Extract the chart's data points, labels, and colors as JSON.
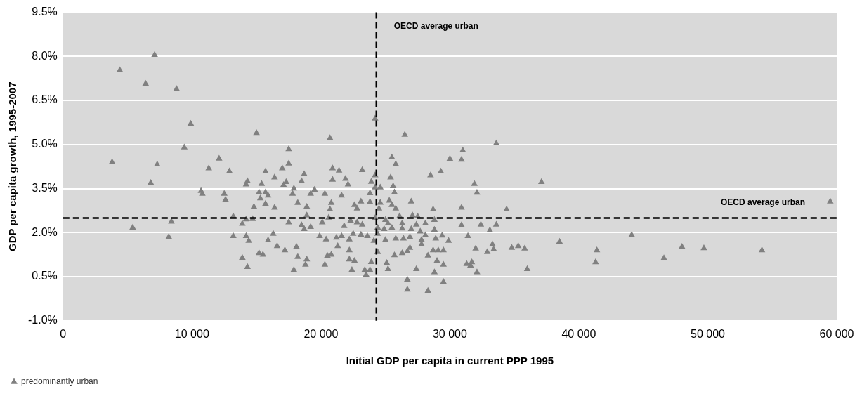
{
  "chart_data": {
    "type": "scatter",
    "xlabel": "Initial GDP per capita in current PPP 1995",
    "ylabel": "GDP per capita growth, 1995-2007",
    "xlim": [
      0,
      60000
    ],
    "xticks": [
      {
        "value": 0,
        "label": "0"
      },
      {
        "value": 10000,
        "label": "10 000"
      },
      {
        "value": 20000,
        "label": "20 000"
      },
      {
        "value": 30000,
        "label": "30 000"
      },
      {
        "value": 40000,
        "label": "40 000"
      },
      {
        "value": 50000,
        "label": "50 000"
      },
      {
        "value": 60000,
        "label": "60 000"
      }
    ],
    "ylim": [
      -1.0,
      9.5
    ],
    "yticks": [
      {
        "value": -1.0,
        "label": "-1.0%"
      },
      {
        "value": 0.5,
        "label": "0.5%"
      },
      {
        "value": 2.0,
        "label": "2.0%"
      },
      {
        "value": 3.5,
        "label": "3.5%"
      },
      {
        "value": 5.0,
        "label": "5.0%"
      },
      {
        "value": 6.5,
        "label": "6.5%"
      },
      {
        "value": 8.0,
        "label": "8.0%"
      },
      {
        "value": 9.5,
        "label": "9.5%"
      }
    ],
    "grid": "y",
    "legend": "bottom left",
    "marker": "triangle",
    "ref_lines": [
      {
        "axis": "x",
        "value": 24300,
        "label": "OECD average urban",
        "color": "#000000",
        "line_style": "dashed"
      },
      {
        "axis": "y",
        "value": 2.5,
        "label": "OECD average urban",
        "color": "#000000",
        "line_style": "dashed"
      }
    ],
    "series": [
      {
        "name": "predominantly urban",
        "color": "#808080",
        "x": [
          7100,
          4400,
          6400,
          8800,
          9900,
          15000,
          9400,
          17500,
          3800,
          7300,
          12100,
          17500,
          11300,
          12900,
          15700,
          17000,
          16400,
          18700,
          14300,
          14200,
          15400,
          17100,
          17300,
          18500,
          6800,
          17900,
          10700,
          10800,
          12500,
          12600,
          15200,
          15700,
          15900,
          15300,
          15700,
          17800,
          18200,
          19200,
          19500,
          14800,
          16400,
          18900,
          18900,
          13200,
          8400,
          14200,
          14700,
          13900,
          17500,
          18500,
          18700,
          19200,
          5400,
          8200,
          13200,
          14200,
          14400,
          16300,
          15900,
          16600,
          17200,
          18100,
          19900,
          15200,
          15500,
          13900,
          18200,
          18900,
          18800,
          14300,
          17900,
          24200,
          20700,
          26500,
          33600,
          31000,
          25500,
          25800,
          30000,
          30900,
          20900,
          21400,
          23200,
          24200,
          28500,
          29300,
          25400,
          20900,
          21900,
          22100,
          23900,
          31900,
          37100,
          24200,
          24600,
          25600,
          32100,
          20300,
          21600,
          23800,
          25700,
          20800,
          20700,
          22600,
          23100,
          22800,
          23800,
          24600,
          25300,
          25500,
          25800,
          27000,
          28700,
          30900,
          34400,
          24500,
          20600,
          20100,
          22300,
          22800,
          23200,
          24200,
          25000,
          25200,
          26100,
          26300,
          27100,
          27500,
          27400,
          28100,
          28800,
          30900,
          32400,
          33600,
          21800,
          24400,
          24900,
          25500,
          26300,
          27000,
          27700,
          28800,
          33100,
          20400,
          21200,
          21600,
          22200,
          22500,
          23100,
          23600,
          24100,
          24400,
          25000,
          25800,
          26400,
          26900,
          27800,
          28100,
          28900,
          29400,
          29900,
          31400,
          38500,
          21300,
          22200,
          24400,
          27800,
          26900,
          26700,
          26300,
          25700,
          28700,
          29100,
          29500,
          32000,
          33300,
          33400,
          32900,
          34800,
          35300,
          35800,
          20500,
          20800,
          22200,
          22600,
          20300,
          22400,
          23400,
          23500,
          23800,
          25100,
          25200,
          23900,
          27400,
          28300,
          29000,
          29500,
          28800,
          31300,
          31700,
          31600,
          32100,
          36000,
          26700,
          29500,
          26700,
          28300,
          59500,
          44100,
          41400,
          41300,
          46600,
          48000,
          49700,
          54200
        ],
        "values": [
          8.05,
          7.53,
          7.07,
          6.89,
          5.71,
          5.39,
          4.9,
          4.84,
          4.4,
          4.32,
          4.52,
          4.35,
          4.19,
          4.09,
          4.08,
          4.19,
          3.88,
          3.99,
          3.75,
          3.64,
          3.66,
          3.62,
          3.72,
          3.75,
          3.69,
          3.5,
          3.42,
          3.32,
          3.32,
          3.12,
          3.37,
          3.37,
          3.26,
          3.17,
          2.98,
          3.32,
          3.01,
          3.32,
          3.46,
          2.88,
          2.85,
          2.88,
          2.59,
          2.55,
          2.37,
          2.45,
          2.46,
          2.3,
          2.35,
          2.25,
          2.12,
          2.19,
          2.17,
          1.85,
          1.88,
          1.88,
          1.72,
          1.96,
          1.74,
          1.54,
          1.4,
          1.52,
          1.88,
          1.3,
          1.25,
          1.14,
          1.17,
          1.09,
          0.91,
          0.83,
          0.73,
          5.88,
          5.22,
          5.33,
          5.04,
          4.8,
          4.56,
          4.33,
          4.51,
          4.48,
          4.19,
          4.11,
          4.13,
          3.95,
          3.95,
          4.08,
          3.88,
          3.8,
          3.83,
          3.64,
          3.73,
          3.66,
          3.72,
          3.54,
          3.54,
          3.58,
          3.36,
          3.32,
          3.26,
          3.34,
          3.37,
          3.01,
          2.79,
          2.94,
          3.06,
          2.82,
          3.04,
          3.02,
          3.09,
          2.94,
          2.82,
          3.06,
          2.79,
          2.85,
          2.79,
          2.82,
          2.51,
          2.35,
          2.4,
          2.35,
          2.27,
          2.49,
          2.43,
          2.31,
          2.56,
          2.31,
          2.59,
          2.55,
          2.27,
          2.31,
          2.43,
          2.25,
          2.27,
          2.27,
          2.22,
          2.17,
          2.12,
          2.16,
          2.14,
          2.12,
          2.04,
          2.1,
          2.08,
          1.77,
          1.83,
          1.88,
          1.77,
          1.96,
          1.93,
          1.88,
          1.72,
          1.96,
          1.75,
          1.8,
          1.8,
          1.85,
          1.75,
          1.91,
          1.8,
          1.9,
          1.72,
          1.88,
          1.69,
          1.54,
          1.4,
          1.34,
          1.6,
          1.48,
          1.36,
          1.3,
          1.23,
          1.4,
          1.4,
          1.4,
          1.46,
          1.6,
          1.43,
          1.34,
          1.48,
          1.54,
          1.46,
          1.21,
          1.25,
          1.09,
          1.04,
          0.91,
          0.73,
          0.73,
          0.57,
          0.73,
          0.97,
          0.76,
          1.0,
          0.76,
          1.22,
          1.04,
          0.91,
          0.65,
          0.93,
          0.99,
          0.88,
          0.65,
          0.76,
          0.4,
          0.32,
          0.06,
          0.02,
          3.06,
          1.92,
          1.4,
          0.99,
          1.13,
          1.52,
          1.47,
          1.4
        ]
      }
    ]
  }
}
